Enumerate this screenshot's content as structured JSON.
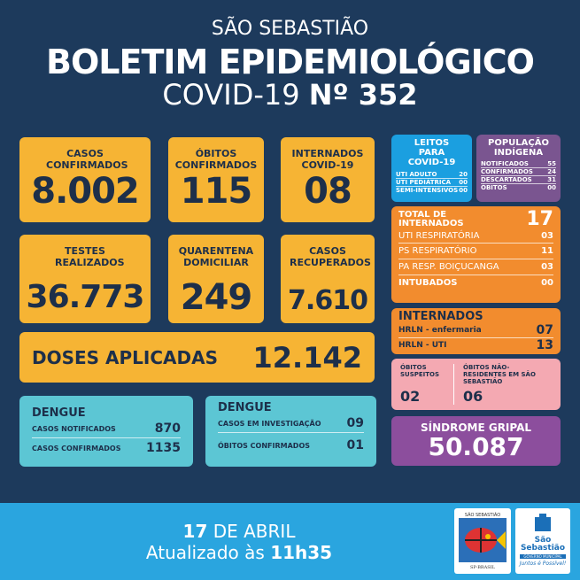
{
  "header": {
    "city": "SÃO SEBASTIÃO",
    "title": "BOLETIM EPIDEMIOLÓGICO",
    "subtitle_prefix": "COVID-19",
    "subtitle_num": "Nº 352"
  },
  "cards": [
    {
      "label": "CASOS CONFIRMADOS",
      "value": "8.002"
    },
    {
      "label": "ÓBITOS CONFIRMADOS",
      "value": "115"
    },
    {
      "label": "INTERNADOS COVID-19",
      "value": "08"
    },
    {
      "label": "TESTES REALIZADOS",
      "value": "36.773"
    },
    {
      "label": "QUARENTENA DOMICILIAR",
      "value": "249"
    },
    {
      "label": "CASOS RECUPERADOS",
      "value": "7.610"
    }
  ],
  "doses": {
    "label": "DOSES APLICADAS",
    "value": "12.142"
  },
  "dengue1": {
    "title": "DENGUE",
    "rows": [
      {
        "label": "CASOS NOTIFICADOS",
        "value": "870"
      },
      {
        "label": "CASOS CONFIRMADOS",
        "value": "1135"
      }
    ]
  },
  "dengue2": {
    "title": "DENGUE",
    "rows": [
      {
        "label": "CASOS EM INVESTIGAÇÃO",
        "value": "09"
      },
      {
        "label": "ÓBITOS CONFIRMADOS",
        "value": "01"
      }
    ]
  },
  "leitos": {
    "title": "LEITOS PARA COVID-19",
    "rows": [
      {
        "label": "UTI ADULTO",
        "value": "20"
      },
      {
        "label": "UTI PEDIÁTRICA",
        "value": "00"
      },
      {
        "label": "SEMI-INTENSIVOS",
        "value": "00"
      }
    ]
  },
  "indigena": {
    "title": "POPULAÇÃO INDÍGENA",
    "rows": [
      {
        "label": "NOTIFICADOS",
        "value": "55"
      },
      {
        "label": "CONFIRMADOS",
        "value": "24"
      },
      {
        "label": "DESCARTADOS",
        "value": "31"
      },
      {
        "label": "ÓBITOS",
        "value": "00"
      }
    ]
  },
  "internados_total": {
    "label": "TOTAL DE INTERNADOS",
    "value": "17",
    "rows": [
      {
        "label": "UTI RESPIRATÓRIA",
        "value": "03"
      },
      {
        "label": "PS RESPIRATÓRIO",
        "value": "11"
      },
      {
        "label": "PA RESP. BOIÇUCANGA",
        "value": "03"
      },
      {
        "label": "INTUBADOS",
        "value": "00"
      }
    ]
  },
  "internados_hrln": {
    "title": "INTERNADOS",
    "rows": [
      {
        "label": "HRLN - enfermaria",
        "value": "07"
      },
      {
        "label": "HRLN - UTI",
        "value": "13"
      }
    ]
  },
  "obitos": {
    "suspeitos_label": "ÓBITOS SUSPEITOS",
    "suspeitos_value": "02",
    "nao_res_label": "ÓBITOS NÃO-RESIDENTES EM SÃO SEBASTIÃO",
    "nao_res_value": "06"
  },
  "sindrome": {
    "label": "SÍNDROME GRIPAL",
    "value": "50.087"
  },
  "footer": {
    "date_day": "17",
    "date_month": "DE ABRIL",
    "updated_prefix": "Atualizado às",
    "updated_time": "11h35"
  },
  "logos": {
    "left": "SÃO SEBASTIÃO SP-BRASIL",
    "right": "São Sebastião GOVERNO MUNICIPAL Juntos é Possível!"
  },
  "colors": {
    "background": "#1d3a5c",
    "yellow": "#f6b434",
    "teal": "#5cc6d4",
    "blue": "#1b9fe0",
    "purple": "#7a5590",
    "orange": "#f28c2e",
    "pink": "#f4a9b2",
    "magenta": "#8c4e9d",
    "footer": "#2aa5df"
  }
}
